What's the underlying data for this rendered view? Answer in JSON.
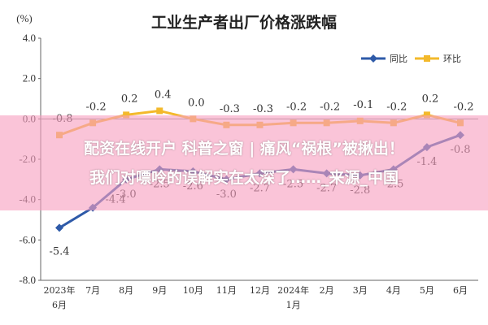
{
  "chart_data": {
    "type": "line",
    "title": "工业生产者出厂价格涨跌幅",
    "unit_label": "(%)",
    "ylim": [
      -8.0,
      4.0
    ],
    "yticks": [
      "4.0",
      "2.0",
      "0.0",
      "-2.0",
      "-4.0",
      "-6.0",
      "-8.0"
    ],
    "categories": [
      [
        "2023年",
        "6月"
      ],
      [
        "7月"
      ],
      [
        "8月"
      ],
      [
        "9月"
      ],
      [
        "10月"
      ],
      [
        "11月"
      ],
      [
        "12月"
      ],
      [
        "2024年",
        "1月"
      ],
      [
        "2月"
      ],
      [
        "3月"
      ],
      [
        "4月"
      ],
      [
        "5月"
      ],
      [
        "6月"
      ]
    ],
    "series": [
      {
        "name": "同比",
        "color": "#2e5aa8",
        "marker": "diamond",
        "values": [
          -5.4,
          -4.4,
          -3.0,
          -2.5,
          -2.6,
          -3.0,
          -2.7,
          -2.5,
          -2.7,
          -2.8,
          -2.5,
          -1.4,
          -0.8
        ],
        "labels": [
          "-5.4",
          "-4.4",
          "-3.0",
          "-2.5",
          "-2.6",
          "-3.0",
          "-2.7",
          "-2.5",
          "-2.7",
          "-2.8",
          "-2.5",
          "-1.4",
          "-0.8"
        ]
      },
      {
        "name": "环比",
        "color": "#f3b92b",
        "marker": "square",
        "values": [
          -0.8,
          -0.2,
          0.2,
          0.4,
          0.0,
          -0.3,
          -0.3,
          -0.2,
          -0.2,
          -0.1,
          -0.2,
          0.2,
          -0.2
        ],
        "labels": [
          "-0.8",
          "-0.2",
          "0.2",
          "0.4",
          "0.0",
          "-0.3",
          "-0.3",
          "-0.2",
          "-0.2",
          "-0.1",
          "-0.2",
          "0.2",
          "-0.2"
        ]
      }
    ],
    "legend_position": "top-right",
    "grid": false
  },
  "overlay": {
    "line1": "配资在线开户 科普之窗 | 痛风“祸根”被揪出！",
    "line2": "我们对嘌呤的误解实在太深了……_来源_中国"
  }
}
